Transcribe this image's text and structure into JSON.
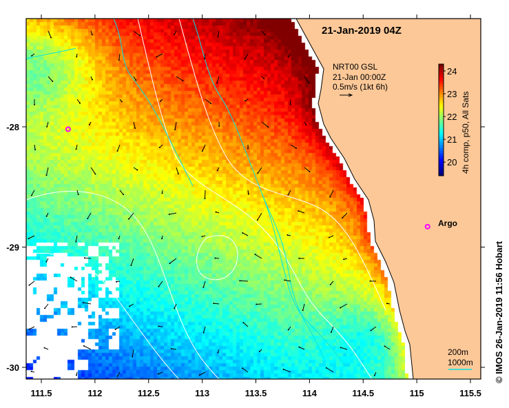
{
  "title": "21-Jan-2019 04Z",
  "vector_legend": {
    "line1": "NRT00 GSL",
    "line2": "21-Jan 00:00Z",
    "line3": "0.5m/s (1kt 6h)"
  },
  "colorbar": {
    "label": "4h comp, p50, All Sats",
    "ticks": [
      "20",
      "21",
      "22",
      "23",
      "24"
    ],
    "range": [
      19.4,
      24.3
    ]
  },
  "x_axis": {
    "ticks": [
      "111.5",
      "112",
      "112.5",
      "113",
      "113.5",
      "114",
      "114.5",
      "115",
      "115.5"
    ],
    "range": [
      111.3,
      115.55
    ]
  },
  "y_axis": {
    "ticks": [
      "-28",
      "-29",
      "-30"
    ],
    "range": [
      -27.1,
      -30.1
    ]
  },
  "markers": [
    {
      "label": "",
      "lon": 111.75,
      "lat": -28.02
    },
    {
      "label": "Argo",
      "lon": 115.1,
      "lat": -28.83
    }
  ],
  "contour_legend": {
    "line1": "200m",
    "line2": "1000m"
  },
  "credit": "© IMOS 26-Jan-2019 11:56 Hobart",
  "colors": {
    "land": "#fdc898",
    "marker": "#ff00ff",
    "isobath_1000": "#00e5e5",
    "contour": "#ffffff"
  }
}
